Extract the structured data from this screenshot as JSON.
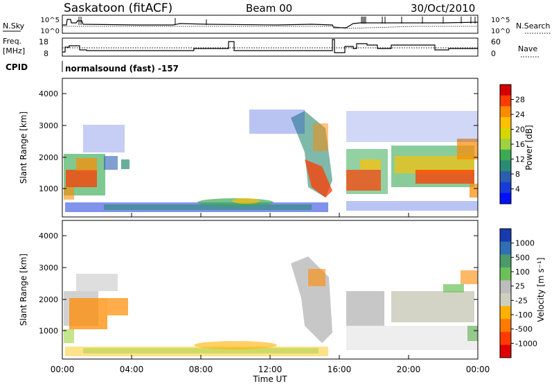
{
  "header": {
    "title": "Saskatoon (fitACF)",
    "beam": "Beam 00",
    "date": "30/Oct/2010"
  },
  "noise_panel": {
    "left_label": "N.Sky",
    "right_label": "N.Search",
    "left_ticks": [
      "10^5",
      "10^0"
    ],
    "right_ticks": [
      "10^5",
      "10^0"
    ]
  },
  "freq_panel": {
    "left_label_1": "Freq.",
    "left_label_2": "[MHz]",
    "right_label": "Nave",
    "left_ticks": [
      "18",
      "8"
    ],
    "right_ticks": [
      "60",
      "0"
    ]
  },
  "cpid": {
    "label": "CPID",
    "text": "normalsound (fast) -157"
  },
  "power_panel": {
    "ylabel": "Slant Range [km]",
    "yticks": [
      "4000",
      "3000",
      "2000",
      "1000"
    ],
    "colorbar_label": "Power [dB]",
    "colorbar_ticks": [
      "28",
      "24",
      "20",
      "16",
      "12",
      "8",
      "4"
    ],
    "colors": [
      "#d40000",
      "#ff3b00",
      "#ff8a00",
      "#ffc000",
      "#d7d700",
      "#9fd23f",
      "#3aaa55",
      "#2a8a72",
      "#2a5fb0",
      "#1a3ad8",
      "#0010ff"
    ]
  },
  "velocity_panel": {
    "ylabel": "Slant Range [km]",
    "yticks": [
      "4000",
      "3000",
      "2000",
      "1000"
    ],
    "colorbar_label": "Velocity [m s⁻¹]",
    "colorbar_ticks": [
      "1000",
      "500",
      "100",
      "25",
      "-25",
      "-100",
      "-500",
      "-1000"
    ],
    "colors": [
      "#1a3ab0",
      "#2f6fb5",
      "#4a9a6a",
      "#6cc05a",
      "#bdbdbd",
      "#cfcfc0",
      "#ffb000",
      "#ff7a00",
      "#ff3b00",
      "#e00000"
    ]
  },
  "xaxis": {
    "ticks": [
      "00:00",
      "04:00",
      "08:00",
      "12:00",
      "16:00",
      "20:00",
      "00:00"
    ],
    "label": "Time UT"
  },
  "chart_data": {
    "type": "heatmap",
    "xlabel": "Time UT",
    "ylabel": "Slant Range [km]",
    "xlim": [
      "00:00",
      "24:00"
    ],
    "ylim": [
      200,
      4600
    ],
    "power_colorbar": {
      "label": "Power [dB]",
      "range": [
        0,
        30
      ]
    },
    "velocity_colorbar": {
      "label": "Velocity [m s⁻¹]",
      "range": [
        -1000,
        1000
      ]
    },
    "backscatter_regions": [
      {
        "start": "00:00",
        "end": "02:30",
        "range_km": [
          800,
          2100
        ],
        "power": "moderate-high",
        "velocity": "negative (-25 to -100)"
      },
      {
        "start": "01:00",
        "end": "03:45",
        "range_km": [
          1500,
          3000
        ],
        "power": "low",
        "velocity": "negative (-100)"
      },
      {
        "start": "00:00",
        "end": "14:00",
        "range_km": [
          200,
          600
        ],
        "power": "low",
        "velocity": "near zero / positive"
      },
      {
        "start": "13:30",
        "end": "16:00",
        "range_km": [
          800,
          3500
        ],
        "power": "moderate-high",
        "velocity": "-25 to 25"
      },
      {
        "start": "16:30",
        "end": "19:00",
        "range_km": [
          800,
          2500
        ],
        "power": "high",
        "velocity": "-25 to 25"
      },
      {
        "start": "19:00",
        "end": "24:00",
        "range_km": [
          1000,
          2500
        ],
        "power": "high",
        "velocity": "-25 to 25"
      }
    ]
  }
}
